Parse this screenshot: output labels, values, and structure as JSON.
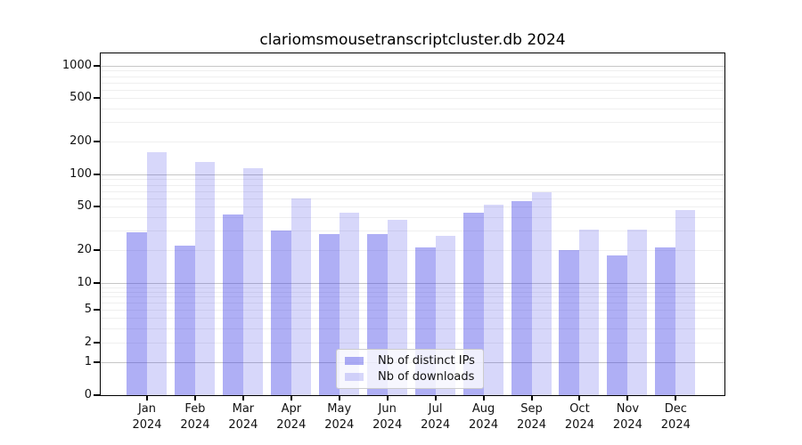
{
  "chart_data": {
    "type": "bar",
    "title": "clariomsmousetranscriptcluster.db 2024",
    "x_categories": [
      "Jan",
      "Feb",
      "Mar",
      "Apr",
      "May",
      "Jun",
      "Jul",
      "Aug",
      "Sep",
      "Oct",
      "Nov",
      "Dec"
    ],
    "x_year": "2024",
    "series": [
      {
        "name": "Nb of distinct IPs",
        "color": "rgba(55,55,230,0.40)",
        "values": [
          29,
          22,
          42,
          30,
          28,
          28,
          21,
          44,
          56,
          20,
          18,
          21
        ]
      },
      {
        "name": "Nb of downloads",
        "color": "rgba(55,55,230,0.20)",
        "values": [
          160,
          130,
          115,
          60,
          44,
          38,
          27,
          52,
          68,
          31,
          31,
          46
        ]
      }
    ],
    "y_ticks": [
      0,
      1,
      2,
      5,
      10,
      20,
      50,
      100,
      200,
      500,
      1000
    ],
    "y_scale": "log-like with 0 baseline",
    "ylim": [
      0,
      1300
    ],
    "grid": true,
    "legend_position": "bottom-center"
  }
}
